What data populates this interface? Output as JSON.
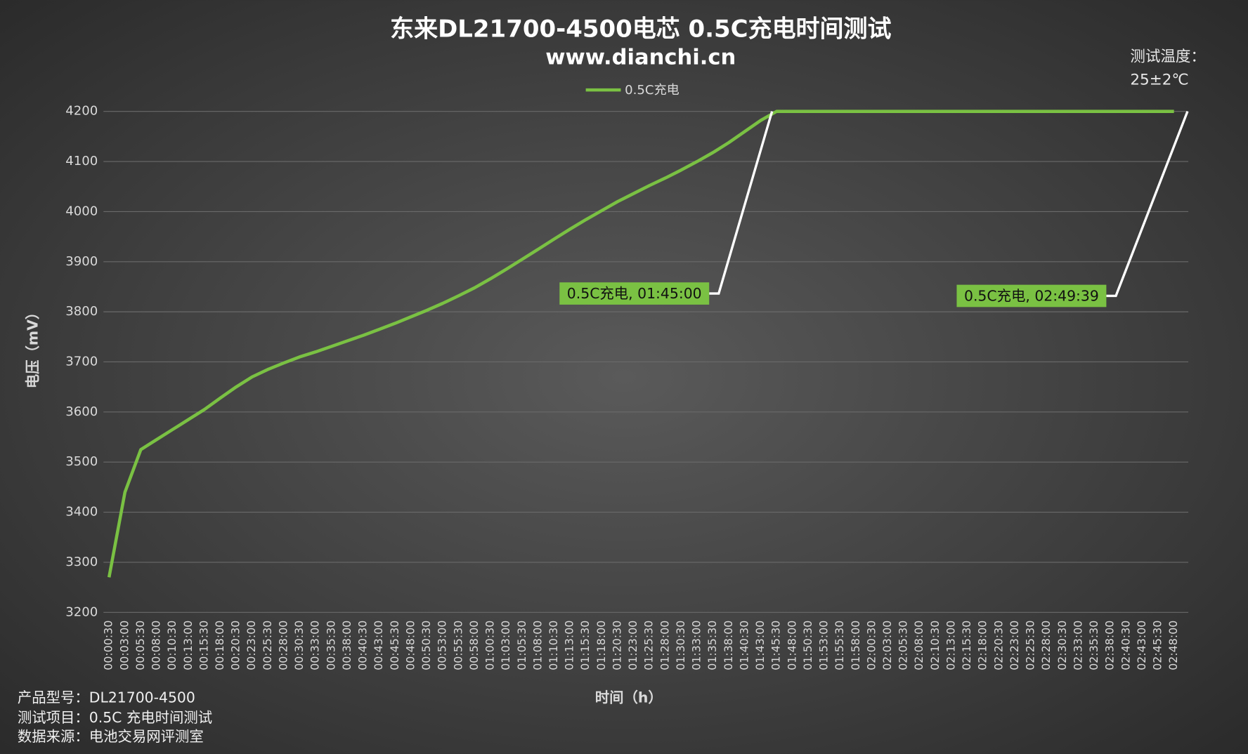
{
  "chart_data": {
    "type": "line",
    "title": "东来DL21700-4500电芯 0.5C充电时间测试",
    "subtitle": "www.dianchi.cn",
    "xlabel": "时间（h）",
    "ylabel": "电压（mV）",
    "notes": [
      "测试温度：",
      "25±2℃"
    ],
    "footer": [
      "产品型号：DL21700-4500",
      "测试项目：0.5C 充电时间测试",
      "数据来源：电池交易网评测室"
    ],
    "annotations": [
      "0.5C充电, 01:45:00",
      "0.5C充电, 02:49:39"
    ],
    "categories": [
      "00:00:30",
      "00:03:00",
      "00:05:30",
      "00:08:00",
      "00:10:30",
      "00:13:00",
      "00:15:30",
      "00:18:00",
      "00:20:30",
      "00:23:00",
      "00:25:30",
      "00:28:00",
      "00:30:30",
      "00:33:00",
      "00:35:30",
      "00:38:00",
      "00:40:30",
      "00:43:00",
      "00:45:30",
      "00:48:00",
      "00:50:30",
      "00:53:00",
      "00:55:30",
      "00:58:00",
      "01:00:30",
      "01:03:00",
      "01:05:30",
      "01:08:00",
      "01:10:30",
      "01:13:00",
      "01:15:30",
      "01:18:00",
      "01:20:30",
      "01:23:00",
      "01:25:30",
      "01:28:00",
      "01:30:30",
      "01:33:00",
      "01:35:30",
      "01:38:00",
      "01:40:30",
      "01:43:00",
      "01:45:30",
      "01:48:00",
      "01:50:30",
      "01:53:00",
      "01:55:30",
      "01:58:00",
      "02:00:30",
      "02:03:00",
      "02:05:30",
      "02:08:00",
      "02:10:30",
      "02:13:00",
      "02:15:30",
      "02:18:00",
      "02:20:30",
      "02:23:00",
      "02:25:30",
      "02:28:00",
      "02:30:30",
      "02:33:00",
      "02:35:30",
      "02:38:00",
      "02:40:30",
      "02:43:00",
      "02:45:30",
      "02:48:00"
    ],
    "series": [
      {
        "name": "0.5C充电",
        "color": "#7ac143",
        "values": [
          3270,
          3440,
          3525,
          3545,
          3565,
          3585,
          3605,
          3628,
          3650,
          3670,
          3685,
          3698,
          3710,
          3720,
          3731,
          3742,
          3753,
          3765,
          3777,
          3790,
          3803,
          3817,
          3832,
          3848,
          3866,
          3885,
          3905,
          3925,
          3945,
          3965,
          3984,
          4002,
          4020,
          4036,
          4052,
          4067,
          4083,
          4100,
          4118,
          4138,
          4160,
          4182,
          4200,
          4200,
          4200,
          4200,
          4200,
          4200,
          4200,
          4200,
          4200,
          4200,
          4200,
          4200,
          4200,
          4200,
          4200,
          4200,
          4200,
          4200,
          4200,
          4200,
          4200,
          4200,
          4200,
          4200,
          4200,
          4200
        ]
      }
    ],
    "ylim": [
      3200,
      4200
    ],
    "yticks": [
      3200,
      3300,
      3400,
      3500,
      3600,
      3700,
      3800,
      3900,
      4000,
      4100,
      4200
    ],
    "grid": true
  }
}
